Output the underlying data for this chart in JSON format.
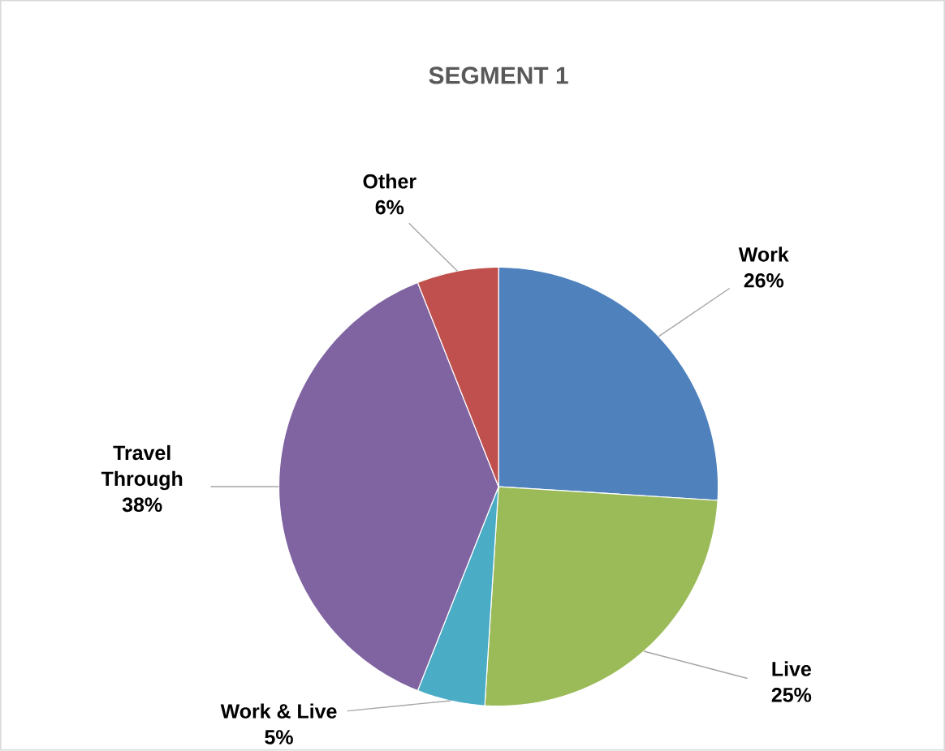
{
  "chart_data": {
    "type": "pie",
    "title": "SEGMENT 1",
    "categories": [
      "Work",
      "Live",
      "Work & Live",
      "Travel Through",
      "Other"
    ],
    "values": [
      26,
      25,
      5,
      38,
      6
    ],
    "value_labels": [
      "26%",
      "25%",
      "5%",
      "38%",
      "6%"
    ],
    "colors": [
      "#4f81bd",
      "#9bbb59",
      "#4bacc6",
      "#8064a2",
      "#c0504d"
    ]
  }
}
